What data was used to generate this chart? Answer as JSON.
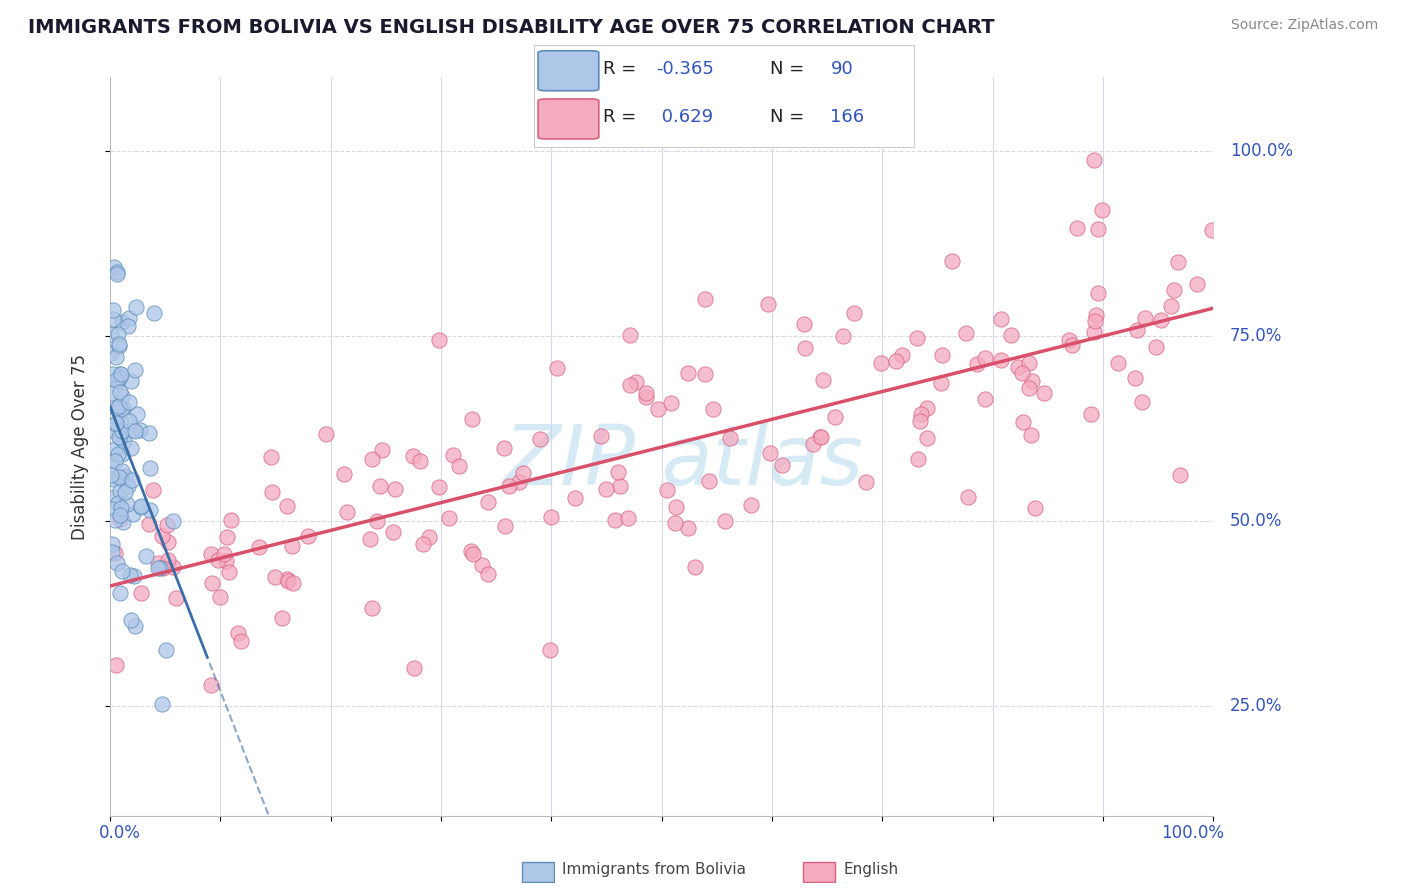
{
  "title": "IMMIGRANTS FROM BOLIVIA VS ENGLISH DISABILITY AGE OVER 75 CORRELATION CHART",
  "source": "Source: ZipAtlas.com",
  "ylabel": "Disability Age Over 75",
  "y_tick_labels": [
    "100.0%",
    "75.0%",
    "50.0%",
    "25.0%"
  ],
  "y_tick_vals": [
    100,
    75,
    50,
    25
  ],
  "legend_blue_label": "Immigrants from Bolivia",
  "legend_pink_label": "English",
  "blue_R": -0.365,
  "blue_N": 90,
  "pink_R": 0.629,
  "pink_N": 166,
  "blue_color": "#AEC6E8",
  "pink_color": "#F4AABF",
  "blue_edge_color": "#5B8DB8",
  "pink_edge_color": "#D96080",
  "blue_line_color": "#3A6EA8",
  "pink_line_color": "#D9506A",
  "watermark_text": "ZIP atlas",
  "watermark_color": "#BBDDF0",
  "background_color": "#ffffff",
  "grid_color": "#d8d8e8",
  "title_color": "#1a1a2e",
  "source_color": "#888888",
  "label_color": "#3355bb",
  "axis_label_color": "#333333"
}
